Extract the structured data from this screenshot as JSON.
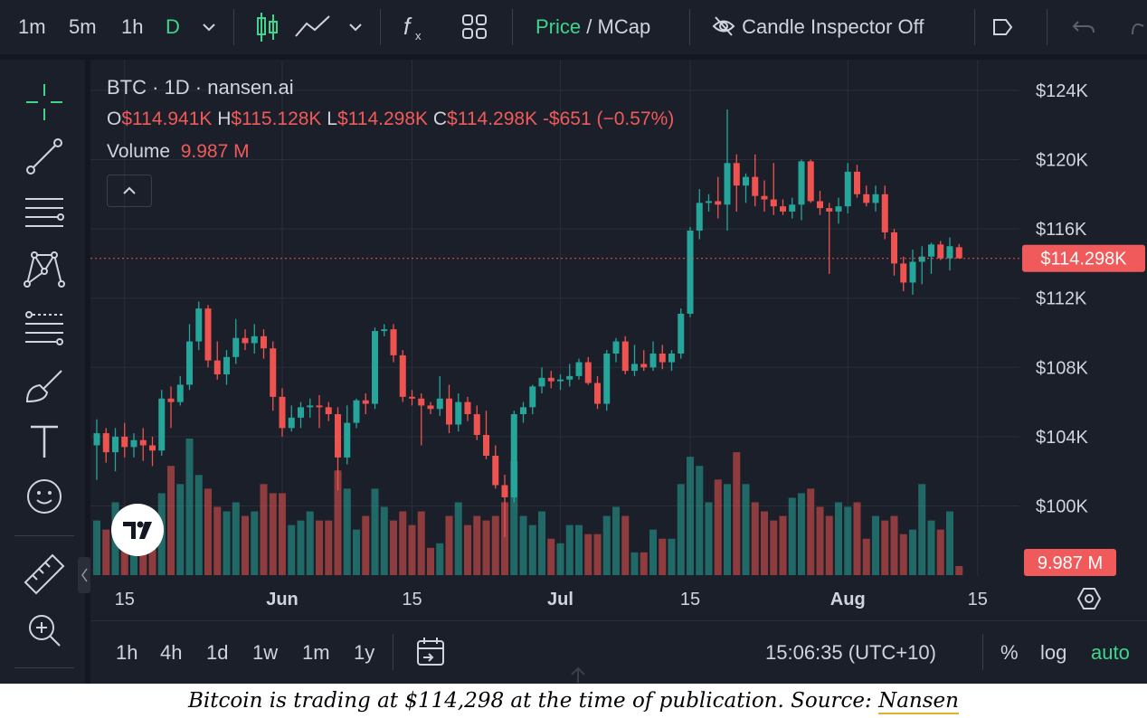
{
  "toolbar": {
    "intervals": [
      "1m",
      "5m",
      "1h",
      "D"
    ],
    "active_interval": "D",
    "price_label": "Price",
    "slash": "/",
    "mcap_label": "MCap",
    "inspector_label": "Candle Inspector Off"
  },
  "legend": {
    "title": "BTC · 1D · nansen.ai",
    "o_label": "O",
    "o_value": "$114.941K",
    "h_label": "H",
    "h_value": "$115.128K",
    "l_label": "L",
    "l_value": "$114.298K",
    "c_label": "C",
    "c_value": "$114.298K",
    "change": "-$651 (−0.57%)",
    "volume_label": "Volume",
    "volume_value": "9.987 M"
  },
  "price_badge": "$114.298K",
  "volume_badge": "9.987 M",
  "bottom_bar": {
    "ranges": [
      "1h",
      "4h",
      "1d",
      "1w",
      "1m",
      "1y"
    ],
    "time": "15:06:35 (UTC+10)",
    "percent": "%",
    "log": "log",
    "auto": "auto"
  },
  "caption": {
    "text": "Bitcoin is trading at $114,298 at the time of publication. Source: ",
    "link": "Nansen"
  },
  "colors": {
    "up": "#26a69a",
    "down": "#ef5350",
    "active": "#3dd68c",
    "background": "#1b1f29"
  },
  "chart_data": {
    "type": "candlestick",
    "title": "BTC · 1D · nansen.ai",
    "y_unit": "USD",
    "ylim": [
      97000,
      126000
    ],
    "y_ticks": [
      100000,
      104000,
      108000,
      112000,
      116000,
      120000,
      124000
    ],
    "y_tick_labels": [
      "$100K",
      "$104K",
      "$108K",
      "$112K",
      "$116K",
      "$120K",
      "$124K"
    ],
    "x_ticks": [
      {
        "label": "15",
        "index": 3
      },
      {
        "label": "Jun",
        "index": 20
      },
      {
        "label": "15",
        "index": 34
      },
      {
        "label": "Jul",
        "index": 50
      },
      {
        "label": "15",
        "index": 64
      },
      {
        "label": "Aug",
        "index": 81
      },
      {
        "label": "15",
        "index": 95
      }
    ],
    "current_price": 114298,
    "grid": true,
    "candles": [
      {
        "o": 103500,
        "h": 105000,
        "l": 101500,
        "c": 104200,
        "v": 12
      },
      {
        "o": 104200,
        "h": 104500,
        "l": 102500,
        "c": 103100,
        "v": 10
      },
      {
        "o": 103100,
        "h": 104500,
        "l": 102000,
        "c": 104000,
        "v": 16
      },
      {
        "o": 104000,
        "h": 104800,
        "l": 102800,
        "c": 103400,
        "v": 12
      },
      {
        "o": 103400,
        "h": 104200,
        "l": 102800,
        "c": 103800,
        "v": 11
      },
      {
        "o": 103800,
        "h": 104500,
        "l": 102600,
        "c": 103500,
        "v": 13
      },
      {
        "o": 103500,
        "h": 104000,
        "l": 102300,
        "c": 103200,
        "v": 12
      },
      {
        "o": 103200,
        "h": 106700,
        "l": 102900,
        "c": 106200,
        "v": 18
      },
      {
        "o": 106200,
        "h": 106900,
        "l": 104500,
        "c": 106000,
        "v": 24
      },
      {
        "o": 106000,
        "h": 107500,
        "l": 105800,
        "c": 107000,
        "v": 20
      },
      {
        "o": 107000,
        "h": 110500,
        "l": 106700,
        "c": 109500,
        "v": 30
      },
      {
        "o": 109500,
        "h": 111800,
        "l": 109000,
        "c": 111400,
        "v": 22
      },
      {
        "o": 111400,
        "h": 111600,
        "l": 108000,
        "c": 108400,
        "v": 19
      },
      {
        "o": 108400,
        "h": 109500,
        "l": 107300,
        "c": 107600,
        "v": 15
      },
      {
        "o": 107600,
        "h": 109000,
        "l": 107000,
        "c": 108600,
        "v": 14
      },
      {
        "o": 108600,
        "h": 110800,
        "l": 108200,
        "c": 109700,
        "v": 16
      },
      {
        "o": 109700,
        "h": 110200,
        "l": 109000,
        "c": 109400,
        "v": 13
      },
      {
        "o": 109400,
        "h": 110500,
        "l": 108800,
        "c": 109800,
        "v": 14
      },
      {
        "o": 109800,
        "h": 110200,
        "l": 108500,
        "c": 109100,
        "v": 20
      },
      {
        "o": 109100,
        "h": 109500,
        "l": 105500,
        "c": 106300,
        "v": 18
      },
      {
        "o": 106300,
        "h": 106800,
        "l": 104000,
        "c": 104500,
        "v": 18
      },
      {
        "o": 104500,
        "h": 105800,
        "l": 104300,
        "c": 105100,
        "v": 11
      },
      {
        "o": 105100,
        "h": 106000,
        "l": 104500,
        "c": 105700,
        "v": 12
      },
      {
        "o": 105700,
        "h": 106200,
        "l": 105100,
        "c": 105800,
        "v": 14
      },
      {
        "o": 105800,
        "h": 106400,
        "l": 104500,
        "c": 105700,
        "v": 12
      },
      {
        "o": 105700,
        "h": 106000,
        "l": 104900,
        "c": 105300,
        "v": 12
      },
      {
        "o": 105300,
        "h": 105700,
        "l": 100900,
        "c": 102800,
        "v": 23
      },
      {
        "o": 102800,
        "h": 105800,
        "l": 102400,
        "c": 104800,
        "v": 19
      },
      {
        "o": 104800,
        "h": 106200,
        "l": 104500,
        "c": 106100,
        "v": 10
      },
      {
        "o": 106100,
        "h": 106500,
        "l": 105300,
        "c": 105900,
        "v": 13
      },
      {
        "o": 105900,
        "h": 110300,
        "l": 105600,
        "c": 110100,
        "v": 19
      },
      {
        "o": 110100,
        "h": 110500,
        "l": 109800,
        "c": 110200,
        "v": 15
      },
      {
        "o": 110200,
        "h": 110500,
        "l": 108300,
        "c": 108700,
        "v": 12
      },
      {
        "o": 108700,
        "h": 109000,
        "l": 106000,
        "c": 106300,
        "v": 14
      },
      {
        "o": 106300,
        "h": 106700,
        "l": 105800,
        "c": 106200,
        "v": 11
      },
      {
        "o": 106200,
        "h": 106500,
        "l": 103500,
        "c": 105800,
        "v": 14
      },
      {
        "o": 105800,
        "h": 106000,
        "l": 105300,
        "c": 105600,
        "v": 6
      },
      {
        "o": 105600,
        "h": 107500,
        "l": 105200,
        "c": 106200,
        "v": 7
      },
      {
        "o": 106200,
        "h": 107000,
        "l": 104200,
        "c": 104700,
        "v": 13
      },
      {
        "o": 104700,
        "h": 106500,
        "l": 104300,
        "c": 106000,
        "v": 16
      },
      {
        "o": 106000,
        "h": 106300,
        "l": 104900,
        "c": 105300,
        "v": 11
      },
      {
        "o": 105300,
        "h": 105800,
        "l": 103800,
        "c": 104100,
        "v": 13
      },
      {
        "o": 104100,
        "h": 105500,
        "l": 102700,
        "c": 102900,
        "v": 12
      },
      {
        "o": 102900,
        "h": 103500,
        "l": 101000,
        "c": 101200,
        "v": 13
      },
      {
        "o": 101200,
        "h": 101800,
        "l": 98200,
        "c": 100500,
        "v": 16
      },
      {
        "o": 100500,
        "h": 105500,
        "l": 100200,
        "c": 105300,
        "v": 25
      },
      {
        "o": 105300,
        "h": 106000,
        "l": 104800,
        "c": 105700,
        "v": 13
      },
      {
        "o": 105700,
        "h": 107000,
        "l": 105300,
        "c": 106900,
        "v": 11
      },
      {
        "o": 106900,
        "h": 108000,
        "l": 106500,
        "c": 107400,
        "v": 14
      },
      {
        "o": 107400,
        "h": 107800,
        "l": 106800,
        "c": 107200,
        "v": 8
      },
      {
        "o": 107200,
        "h": 107600,
        "l": 106700,
        "c": 107300,
        "v": 7
      },
      {
        "o": 107300,
        "h": 108200,
        "l": 106900,
        "c": 107500,
        "v": 11
      },
      {
        "o": 107500,
        "h": 108500,
        "l": 107300,
        "c": 108300,
        "v": 11
      },
      {
        "o": 108300,
        "h": 108600,
        "l": 107000,
        "c": 107100,
        "v": 9
      },
      {
        "o": 107100,
        "h": 107500,
        "l": 105600,
        "c": 105900,
        "v": 9
      },
      {
        "o": 105900,
        "h": 109000,
        "l": 105500,
        "c": 108800,
        "v": 13
      },
      {
        "o": 108800,
        "h": 109700,
        "l": 108300,
        "c": 109500,
        "v": 15
      },
      {
        "o": 109500,
        "h": 109800,
        "l": 107600,
        "c": 107800,
        "v": 13
      },
      {
        "o": 107800,
        "h": 109300,
        "l": 107500,
        "c": 108200,
        "v": 5
      },
      {
        "o": 108200,
        "h": 109000,
        "l": 107800,
        "c": 108000,
        "v": 5
      },
      {
        "o": 108000,
        "h": 109500,
        "l": 107800,
        "c": 108800,
        "v": 10
      },
      {
        "o": 108800,
        "h": 109300,
        "l": 107900,
        "c": 108300,
        "v": 8
      },
      {
        "o": 108300,
        "h": 109000,
        "l": 107800,
        "c": 108800,
        "v": 8
      },
      {
        "o": 108800,
        "h": 111400,
        "l": 108500,
        "c": 111100,
        "v": 20
      },
      {
        "o": 111100,
        "h": 116100,
        "l": 110900,
        "c": 115900,
        "v": 26
      },
      {
        "o": 115900,
        "h": 118300,
        "l": 115400,
        "c": 117500,
        "v": 24
      },
      {
        "o": 117500,
        "h": 118000,
        "l": 117000,
        "c": 117600,
        "v": 16
      },
      {
        "o": 117600,
        "h": 119000,
        "l": 116600,
        "c": 117400,
        "v": 21
      },
      {
        "o": 117400,
        "h": 122900,
        "l": 115900,
        "c": 119800,
        "v": 20
      },
      {
        "o": 119800,
        "h": 120300,
        "l": 117000,
        "c": 118500,
        "v": 27
      },
      {
        "o": 118500,
        "h": 119200,
        "l": 117500,
        "c": 119000,
        "v": 20
      },
      {
        "o": 119000,
        "h": 120300,
        "l": 117300,
        "c": 117900,
        "v": 16
      },
      {
        "o": 117900,
        "h": 118800,
        "l": 117000,
        "c": 117700,
        "v": 14
      },
      {
        "o": 117700,
        "h": 119800,
        "l": 116800,
        "c": 117300,
        "v": 12
      },
      {
        "o": 117300,
        "h": 117700,
        "l": 116800,
        "c": 117000,
        "v": 13
      },
      {
        "o": 117000,
        "h": 117800,
        "l": 116600,
        "c": 117400,
        "v": 17
      },
      {
        "o": 117400,
        "h": 120000,
        "l": 116500,
        "c": 119900,
        "v": 18
      },
      {
        "o": 119900,
        "h": 120000,
        "l": 117500,
        "c": 117600,
        "v": 19
      },
      {
        "o": 117600,
        "h": 118200,
        "l": 116800,
        "c": 117200,
        "v": 15
      },
      {
        "o": 117200,
        "h": 117500,
        "l": 113400,
        "c": 117000,
        "v": 13
      },
      {
        "o": 117000,
        "h": 117800,
        "l": 116300,
        "c": 117300,
        "v": 16
      },
      {
        "o": 117300,
        "h": 119800,
        "l": 116900,
        "c": 119300,
        "v": 15
      },
      {
        "o": 119300,
        "h": 119700,
        "l": 117800,
        "c": 118000,
        "v": 16
      },
      {
        "o": 118000,
        "h": 118500,
        "l": 117300,
        "c": 117500,
        "v": 8
      },
      {
        "o": 117500,
        "h": 118500,
        "l": 117000,
        "c": 118000,
        "v": 13
      },
      {
        "o": 118000,
        "h": 118500,
        "l": 115400,
        "c": 115800,
        "v": 12
      },
      {
        "o": 115800,
        "h": 116000,
        "l": 113300,
        "c": 114000,
        "v": 13
      },
      {
        "o": 114000,
        "h": 114400,
        "l": 112400,
        "c": 112900,
        "v": 9
      },
      {
        "o": 112900,
        "h": 114800,
        "l": 112200,
        "c": 114100,
        "v": 10
      },
      {
        "o": 114100,
        "h": 115000,
        "l": 112800,
        "c": 114400,
        "v": 20
      },
      {
        "o": 114400,
        "h": 115200,
        "l": 113400,
        "c": 115100,
        "v": 12
      },
      {
        "o": 115100,
        "h": 115300,
        "l": 114200,
        "c": 114300,
        "v": 10
      },
      {
        "o": 114300,
        "h": 115500,
        "l": 113600,
        "c": 115000,
        "v": 14
      },
      {
        "o": 114941,
        "h": 115128,
        "l": 114298,
        "c": 114298,
        "v": 2
      }
    ]
  }
}
